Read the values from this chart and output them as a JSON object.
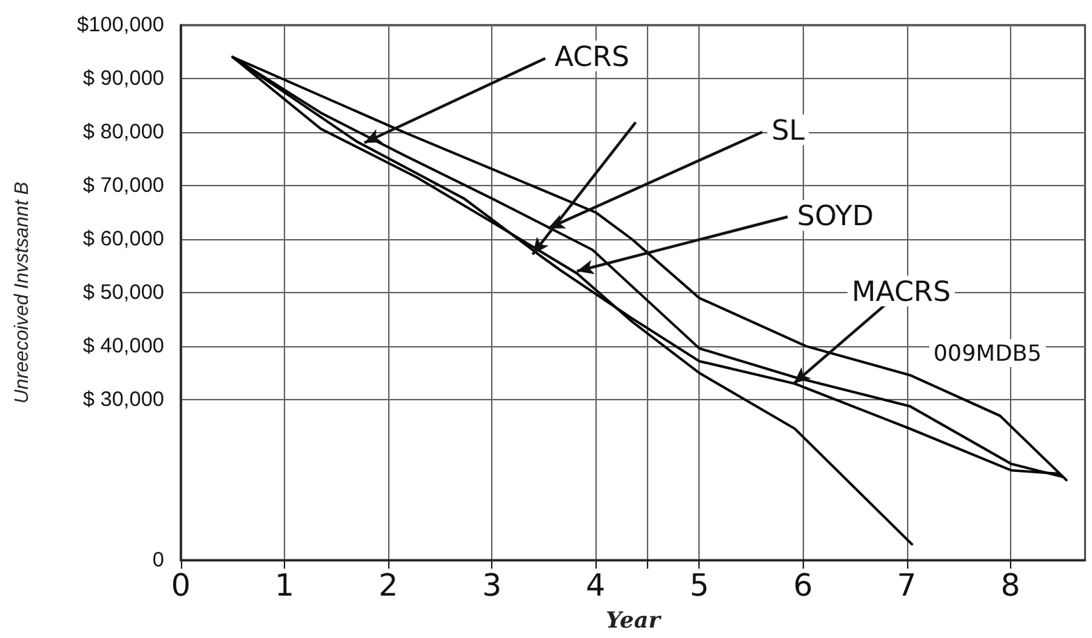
{
  "chart_data": {
    "type": "line",
    "xlabel": "Year",
    "ylabel": "Unreecoived Invstsannt B",
    "annotations": [
      {
        "text": "ACRS",
        "x": 1.77,
        "y": 78000
      },
      {
        "text": "SL",
        "x": 3.54,
        "y": 62000
      },
      {
        "text": "SOYD",
        "x": 3.82,
        "y": 54000
      },
      {
        "text": "MACRS",
        "x": 5.91,
        "y": 33000
      },
      "009MDB5"
    ],
    "series": [
      {
        "color": "#000000",
        "x": [
          0.5,
          2.15,
          4,
          4.35,
          5,
          6.03,
          7.03,
          7.9,
          8.54
        ],
        "values": [
          94000,
          80000,
          65000,
          60000,
          49000,
          40000,
          34600,
          27000,
          15000
        ]
      },
      {
        "color": "#000000",
        "x": [
          0.5,
          1.35,
          2.16,
          3,
          3.97,
          5,
          5.92,
          7.03,
          8.01,
          8.5
        ],
        "values": [
          94000,
          83600,
          75600,
          67600,
          58000,
          39600,
          34200,
          28800,
          18000,
          15600
        ]
      },
      {
        "color": "#000000",
        "x": [
          0.5,
          1.7,
          2.73,
          3.46,
          3.66,
          4.35,
          5,
          5.92,
          7.03,
          8.01,
          8.46
        ],
        "values": [
          94000,
          78200,
          67600,
          57000,
          54200,
          45200,
          37200,
          33000,
          24600,
          16800,
          16200
        ]
      },
      {
        "color": "#000000",
        "x": [
          0.5,
          1.35,
          2.27,
          3.05,
          3.82,
          4.35,
          5,
          5.92,
          7.05
        ],
        "values": [
          94000,
          80600,
          71600,
          62600,
          53600,
          44600,
          35000,
          24600,
          3000
        ]
      }
    ],
    "xlim": [
      0,
      8.72
    ],
    "ylim": [
      0,
      100000
    ],
    "xticks": [
      0,
      1,
      2,
      3,
      4,
      {
        "value": 4.5,
        "label": null
      },
      5,
      6,
      7,
      8
    ],
    "yticks": [
      0,
      {
        "value": 30000,
        "label": "$ 30,000"
      },
      {
        "value": 40000,
        "label": "$ 40,000"
      },
      {
        "value": 50000,
        "label": "$ 50,000"
      },
      {
        "value": 60000,
        "label": "$ 60,000"
      },
      {
        "value": 70000,
        "label": "$ 70,000"
      },
      {
        "value": 80000,
        "label": "$ 80,000"
      },
      {
        "value": 90000,
        "label": "$ 90,000"
      },
      {
        "value": 100000,
        "label": "$100,000"
      }
    ],
    "grid": true,
    "marker": "none",
    "line_style": "solid"
  }
}
